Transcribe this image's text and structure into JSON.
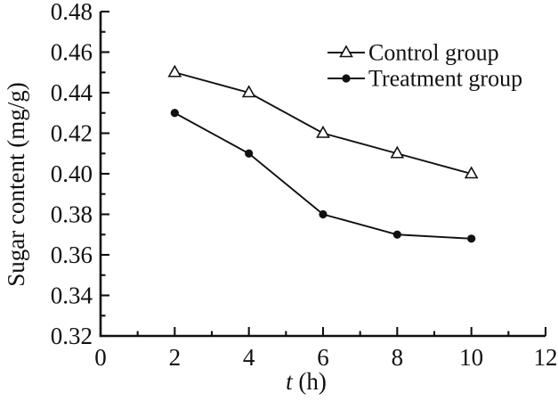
{
  "figure": {
    "background": "#ffffff",
    "ink_color": "#111111"
  },
  "chart_data": {
    "type": "line",
    "title": "",
    "ylabel": "Sugar content (mg/g)",
    "xlabel_parts": [
      {
        "text": "t",
        "italic": true
      },
      {
        "text": " (h)",
        "italic": false
      }
    ],
    "x": [
      2,
      4,
      6,
      8,
      10
    ],
    "series": [
      {
        "name": "Control group",
        "marker": "triangle-open",
        "values": [
          0.45,
          0.44,
          0.42,
          0.41,
          0.4
        ]
      },
      {
        "name": "Treatment group",
        "marker": "circle-filled",
        "values": [
          0.43,
          0.41,
          0.38,
          0.37,
          0.368
        ]
      }
    ],
    "xlim": [
      0,
      12
    ],
    "ylim": [
      0.32,
      0.48
    ],
    "xticks": [
      0,
      2,
      4,
      6,
      8,
      10,
      12
    ],
    "xtick_labels": [
      "0",
      "2",
      "4",
      "6",
      "8",
      "10",
      "12"
    ],
    "yticks": [
      0.32,
      0.34,
      0.36,
      0.38,
      0.4,
      0.42,
      0.44,
      0.46,
      0.48
    ],
    "ytick_labels": [
      "0.32",
      "0.34",
      "0.36",
      "0.38",
      "0.40",
      "0.42",
      "0.44",
      "0.46",
      "0.48"
    ],
    "minor_x_step": 1,
    "minor_y_step": 0.01,
    "grid": false,
    "legend_position": "upper-right-inside",
    "line_color": "#111111"
  }
}
